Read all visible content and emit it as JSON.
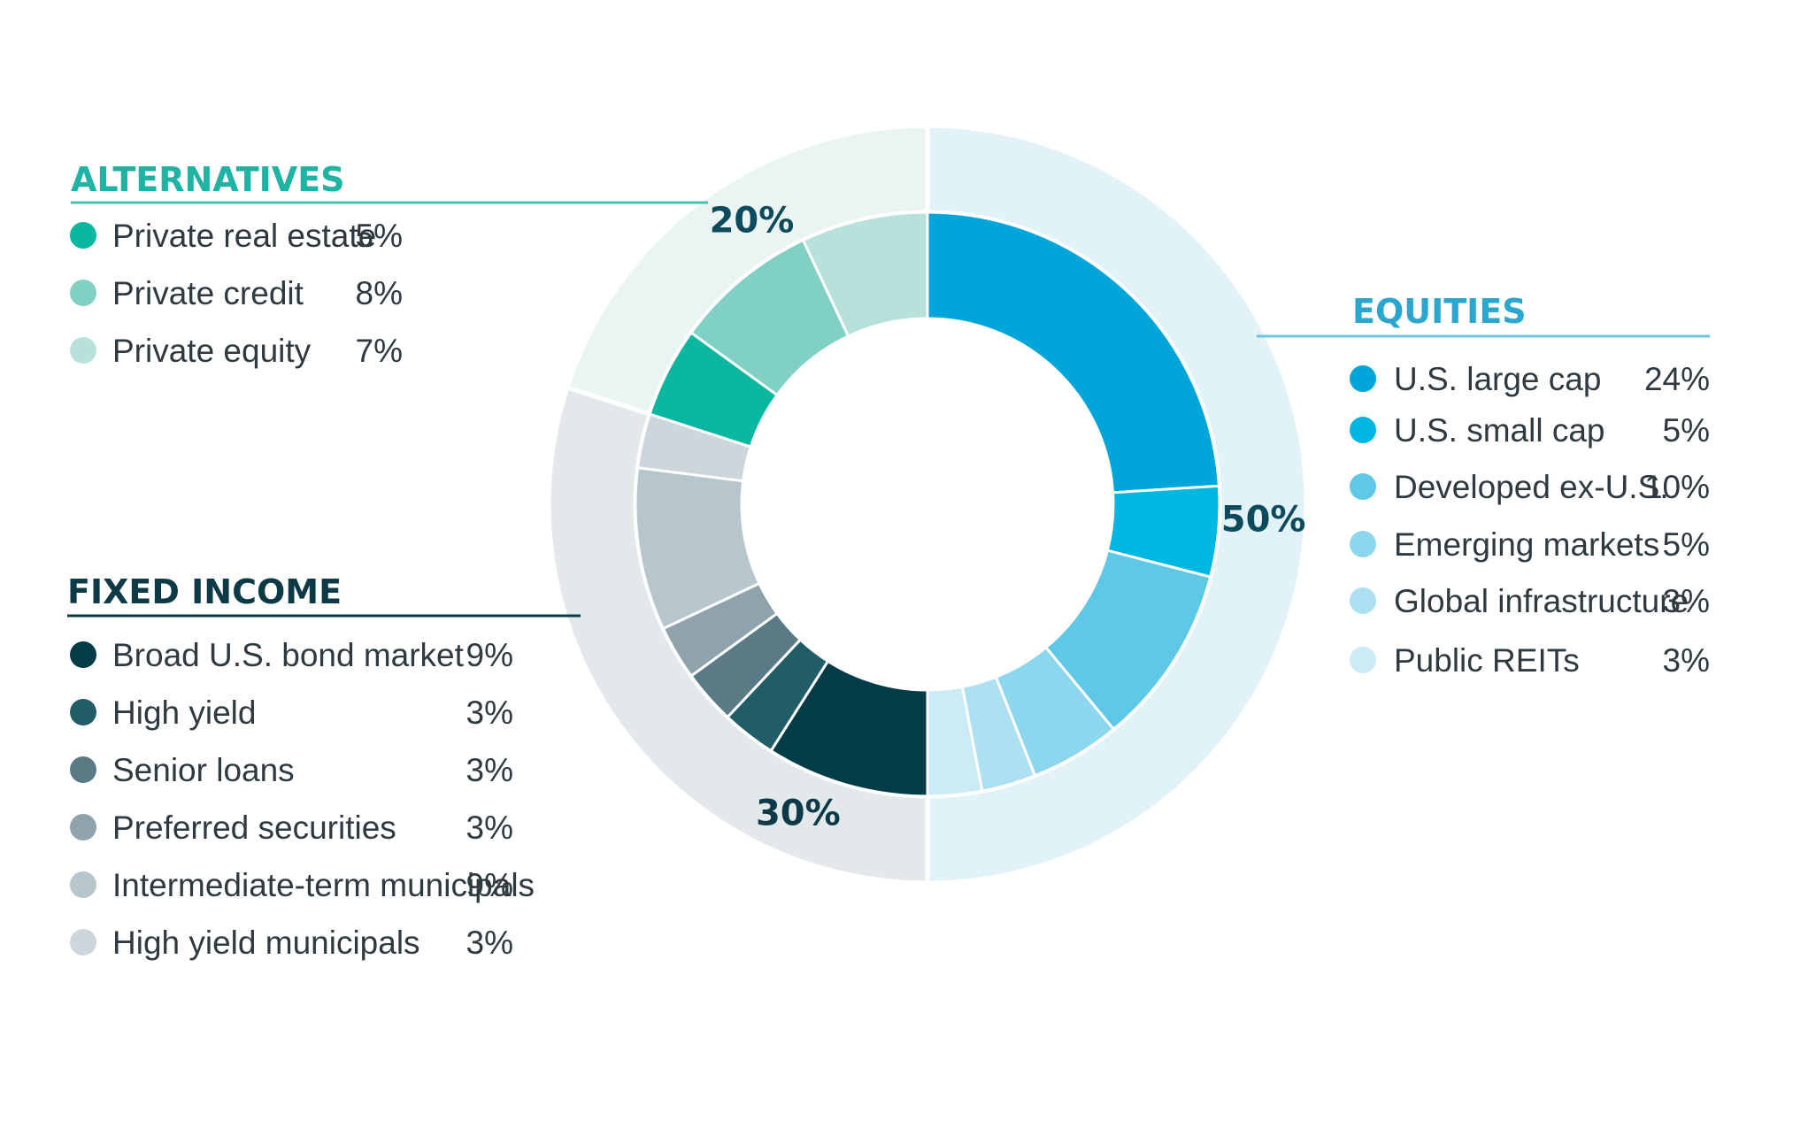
{
  "chart_data": {
    "type": "pie",
    "subtype": "nested-donut",
    "unit": "%",
    "groups": [
      {
        "name": "EQUITIES",
        "total_label": "50%",
        "total": 50,
        "outer_color": "#e1f2f9",
        "title_color": "#2ba6cf",
        "line_color": "#6cc3df",
        "label_color": "#0d4a5c",
        "items": [
          {
            "label": "U.S. large cap",
            "value": 24,
            "display": "24%",
            "color": "#00a5d9"
          },
          {
            "label": "U.S. small cap",
            "value": 5,
            "display": "5%",
            "color": "#00b7e1"
          },
          {
            "label": "Developed ex-U.S.",
            "value": 10,
            "display": "10%",
            "color": "#5ec8e6"
          },
          {
            "label": "Emerging markets",
            "value": 5,
            "display": "5%",
            "color": "#8cd6ee"
          },
          {
            "label": "Global infrastructure",
            "value": 3,
            "display": "3%",
            "color": "#ade1f2"
          },
          {
            "label": "Public REITs",
            "value": 3,
            "display": "3%",
            "color": "#cbebf7"
          }
        ]
      },
      {
        "name": "FIXED INCOME",
        "total_label": "30%",
        "total": 30,
        "outer_color": "#e3e8eb",
        "title_color": "#0c3a47",
        "line_color": "#0c3a47",
        "label_color": "#0c3a47",
        "items": [
          {
            "label": "Broad U.S. bond market",
            "value": 9,
            "display": "9%",
            "color": "#023c48"
          },
          {
            "label": "High yield",
            "value": 3,
            "display": "3%",
            "color": "#215d66"
          },
          {
            "label": "Senior loans",
            "value": 3,
            "display": "3%",
            "color": "#5a7b86"
          },
          {
            "label": "Preferred securities",
            "value": 3,
            "display": "3%",
            "color": "#8ea3ab"
          },
          {
            "label": "Intermediate-term municipals",
            "value": 9,
            "display": "9%",
            "color": "#b6c6cc"
          },
          {
            "label": "High yield municipals",
            "value": 3,
            "display": "3%",
            "color": "#cdd6da"
          }
        ]
      },
      {
        "name": "ALTERNATIVES",
        "total_label": "20%",
        "total": 20,
        "outer_color": "#eaf5f3",
        "title_color": "#1fb3a3",
        "line_color": "#49c2b4",
        "label_color": "#0d4a5c",
        "items": [
          {
            "label": "Private real estate",
            "value": 5,
            "display": "5%",
            "color": "#0bb79f"
          },
          {
            "label": "Private credit",
            "value": 8,
            "display": "8%",
            "color": "#80d0c3"
          },
          {
            "label": "Private equity",
            "value": 7,
            "display": "7%",
            "color": "#b7e1da"
          }
        ]
      }
    ]
  }
}
